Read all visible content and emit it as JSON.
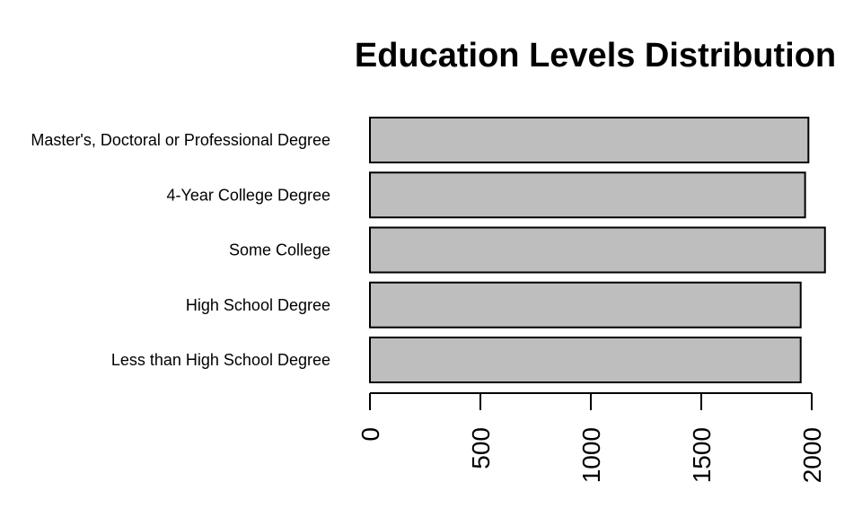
{
  "chart_data": {
    "type": "bar",
    "orientation": "horizontal",
    "title": "Education Levels Distribution",
    "xlabel": "",
    "ylabel": "",
    "categories": [
      "Less than High School Degree",
      "High School Degree",
      "Some College",
      "4-Year College Degree",
      "Master's, Doctoral or Professional Degree"
    ],
    "values": [
      1950,
      1950,
      2060,
      1970,
      1985
    ],
    "xlim": [
      0,
      2000
    ],
    "xticks": [
      0,
      500,
      1000,
      1500,
      2000
    ],
    "tick_labels": [
      "0",
      "500",
      "1000",
      "1500",
      "2000"
    ],
    "grid": false,
    "legend": "none",
    "colors": {
      "bar_fill": "#bebebe",
      "bar_stroke": "#000000",
      "background": "#ffffff"
    }
  }
}
